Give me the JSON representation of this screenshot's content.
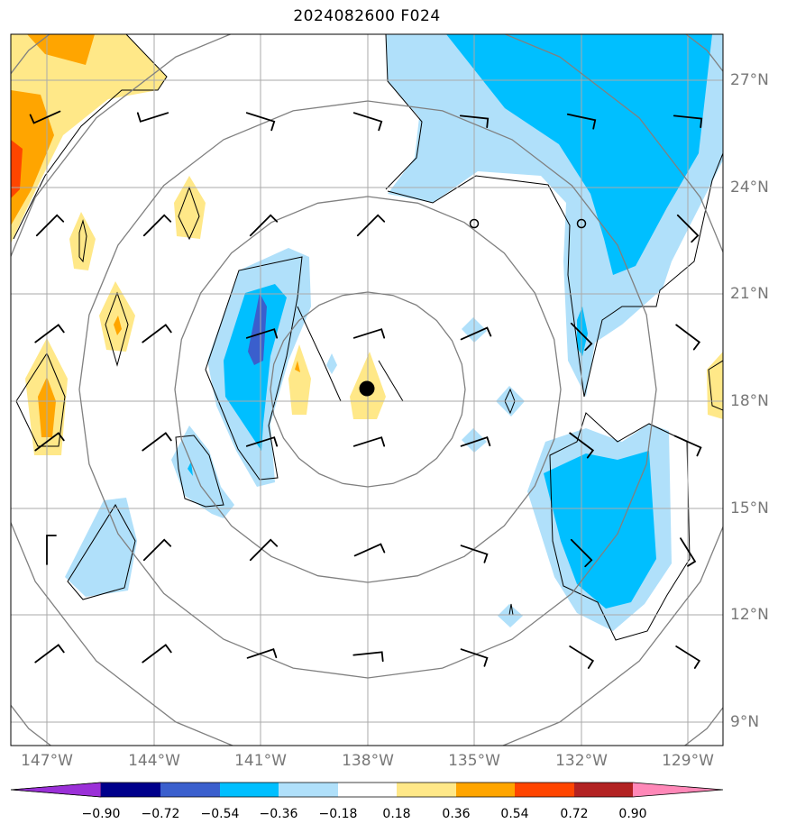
{
  "title": "2024082600 F024",
  "lat_labels": [
    "27°N",
    "24°N",
    "21°N",
    "18°N",
    "15°N",
    "12°N",
    "9°N"
  ],
  "lon_labels": [
    "147°W",
    "144°W",
    "141°W",
    "138°W",
    "135°W",
    "132°W",
    "129°W"
  ],
  "colorbar": {
    "levels": [
      "−0.90",
      "−0.72",
      "−0.54",
      "−0.36",
      "−0.18",
      "0.18",
      "0.36",
      "0.54",
      "0.72",
      "0.90"
    ],
    "colors": [
      "#9b30d8",
      "#00008b",
      "#3a5fcd",
      "#00bfff",
      "#b0e0fa",
      "#ffffff",
      "#ffe888",
      "#ffa500",
      "#ff4500",
      "#b22222",
      "#ff88b8"
    ]
  },
  "storm_center": {
    "lon": -138.0,
    "lat": 18.35
  },
  "map_extent": {
    "lon_min": -148.0,
    "lon_max": -128.0,
    "lat_min": 8.35,
    "lat_max": 28.3
  }
}
